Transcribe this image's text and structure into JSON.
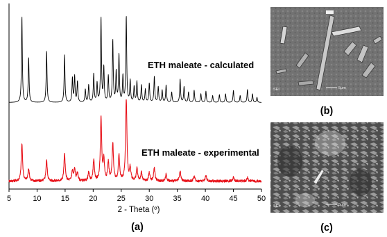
{
  "chart_data": {
    "type": "line",
    "xlabel": "2 - Theta (º)",
    "xlim": [
      5,
      50
    ],
    "x_ticks": [
      5,
      10,
      15,
      20,
      25,
      30,
      35,
      40,
      45,
      50
    ],
    "panel_label": "(a)",
    "series": [
      {
        "name": "ETH maleate - calculated",
        "color": "#000000",
        "baseline": 0.02,
        "peaks": [
          {
            "x": 7.3,
            "y": 1.0
          },
          {
            "x": 8.5,
            "y": 0.52
          },
          {
            "x": 11.7,
            "y": 0.6
          },
          {
            "x": 14.9,
            "y": 0.55
          },
          {
            "x": 16.3,
            "y": 0.28
          },
          {
            "x": 16.7,
            "y": 0.3
          },
          {
            "x": 17.2,
            "y": 0.24
          },
          {
            "x": 18.6,
            "y": 0.15
          },
          {
            "x": 19.2,
            "y": 0.2
          },
          {
            "x": 20.1,
            "y": 0.33
          },
          {
            "x": 20.7,
            "y": 0.22
          },
          {
            "x": 21.4,
            "y": 0.98
          },
          {
            "x": 21.9,
            "y": 0.4
          },
          {
            "x": 22.7,
            "y": 0.3
          },
          {
            "x": 23.5,
            "y": 0.72
          },
          {
            "x": 24.1,
            "y": 0.35
          },
          {
            "x": 24.6,
            "y": 0.55
          },
          {
            "x": 25.3,
            "y": 0.3
          },
          {
            "x": 25.9,
            "y": 1.0
          },
          {
            "x": 26.6,
            "y": 0.25
          },
          {
            "x": 27.3,
            "y": 0.18
          },
          {
            "x": 27.8,
            "y": 0.24
          },
          {
            "x": 28.6,
            "y": 0.2
          },
          {
            "x": 29.3,
            "y": 0.15
          },
          {
            "x": 30.0,
            "y": 0.22
          },
          {
            "x": 30.9,
            "y": 0.3
          },
          {
            "x": 31.6,
            "y": 0.18
          },
          {
            "x": 32.3,
            "y": 0.14
          },
          {
            "x": 33.0,
            "y": 0.2
          },
          {
            "x": 34.0,
            "y": 0.12
          },
          {
            "x": 35.5,
            "y": 0.27
          },
          {
            "x": 36.2,
            "y": 0.18
          },
          {
            "x": 37.0,
            "y": 0.12
          },
          {
            "x": 38.0,
            "y": 0.14
          },
          {
            "x": 39.2,
            "y": 0.1
          },
          {
            "x": 40.1,
            "y": 0.13
          },
          {
            "x": 41.3,
            "y": 0.08
          },
          {
            "x": 42.5,
            "y": 0.09
          },
          {
            "x": 43.6,
            "y": 0.1
          },
          {
            "x": 45.0,
            "y": 0.14
          },
          {
            "x": 46.2,
            "y": 0.08
          },
          {
            "x": 47.5,
            "y": 0.15
          },
          {
            "x": 48.4,
            "y": 0.1
          },
          {
            "x": 49.2,
            "y": 0.06
          }
        ]
      },
      {
        "name": "ETH maleate - experimental",
        "color": "#e8141c",
        "baseline": 0.03,
        "peaks": [
          {
            "x": 7.3,
            "y": 0.45
          },
          {
            "x": 8.5,
            "y": 0.15
          },
          {
            "x": 11.7,
            "y": 0.25
          },
          {
            "x": 14.9,
            "y": 0.32
          },
          {
            "x": 16.3,
            "y": 0.12
          },
          {
            "x": 16.7,
            "y": 0.14
          },
          {
            "x": 17.2,
            "y": 0.1
          },
          {
            "x": 19.2,
            "y": 0.1
          },
          {
            "x": 20.1,
            "y": 0.25
          },
          {
            "x": 21.4,
            "y": 0.75
          },
          {
            "x": 21.9,
            "y": 0.25
          },
          {
            "x": 22.7,
            "y": 0.22
          },
          {
            "x": 23.5,
            "y": 0.45
          },
          {
            "x": 24.6,
            "y": 0.3
          },
          {
            "x": 25.9,
            "y": 1.0
          },
          {
            "x": 26.6,
            "y": 0.15
          },
          {
            "x": 27.8,
            "y": 0.15
          },
          {
            "x": 28.6,
            "y": 0.1
          },
          {
            "x": 30.0,
            "y": 0.1
          },
          {
            "x": 30.9,
            "y": 0.16
          },
          {
            "x": 33.0,
            "y": 0.08
          },
          {
            "x": 35.5,
            "y": 0.12
          },
          {
            "x": 38.0,
            "y": 0.06
          },
          {
            "x": 40.1,
            "y": 0.07
          },
          {
            "x": 45.0,
            "y": 0.05
          },
          {
            "x": 47.5,
            "y": 0.04
          }
        ]
      }
    ]
  },
  "micrographs": [
    {
      "panel_label": "(b)",
      "instrument_text": "SEI",
      "scale_text": "5μm"
    },
    {
      "panel_label": "(c)",
      "instrument_text": "SEI",
      "scale_text": "5μm"
    }
  ]
}
